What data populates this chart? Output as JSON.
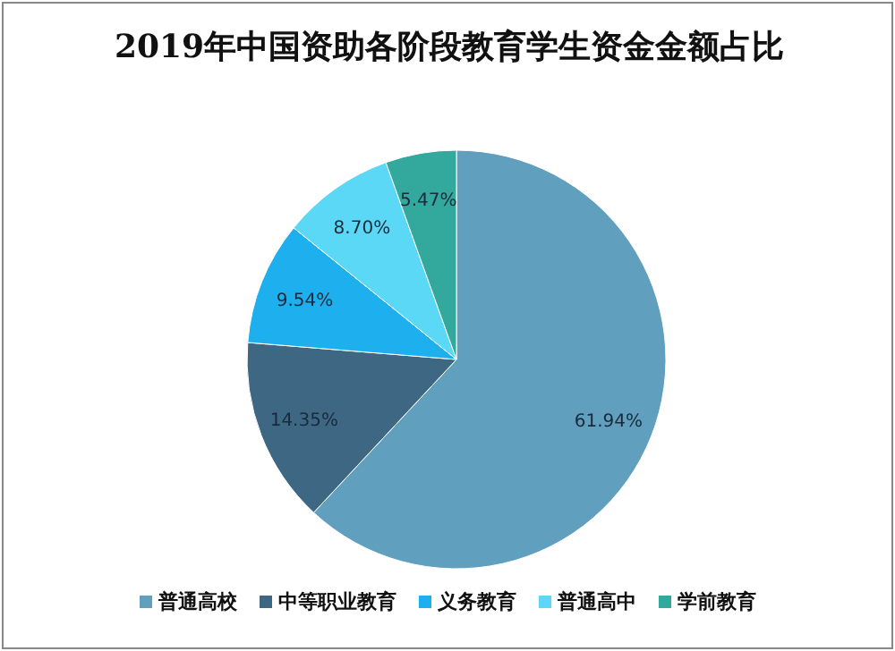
{
  "chart_data": {
    "type": "pie",
    "title": "2019年中国资助各阶段教育学生资金金额占比",
    "categories": [
      "普通高校",
      "中等职业教育",
      "义务教育",
      "普通高中",
      "学前教育"
    ],
    "values": [
      61.94,
      14.35,
      9.54,
      8.7,
      5.47
    ],
    "value_labels": [
      "61.94%",
      "14.35%",
      "9.54%",
      "8.70%",
      "5.47%"
    ],
    "colors": [
      "#619fbf",
      "#3e6783",
      "#1eb0ee",
      "#5ad8f5",
      "#33a89c"
    ],
    "legend": "bottom"
  }
}
